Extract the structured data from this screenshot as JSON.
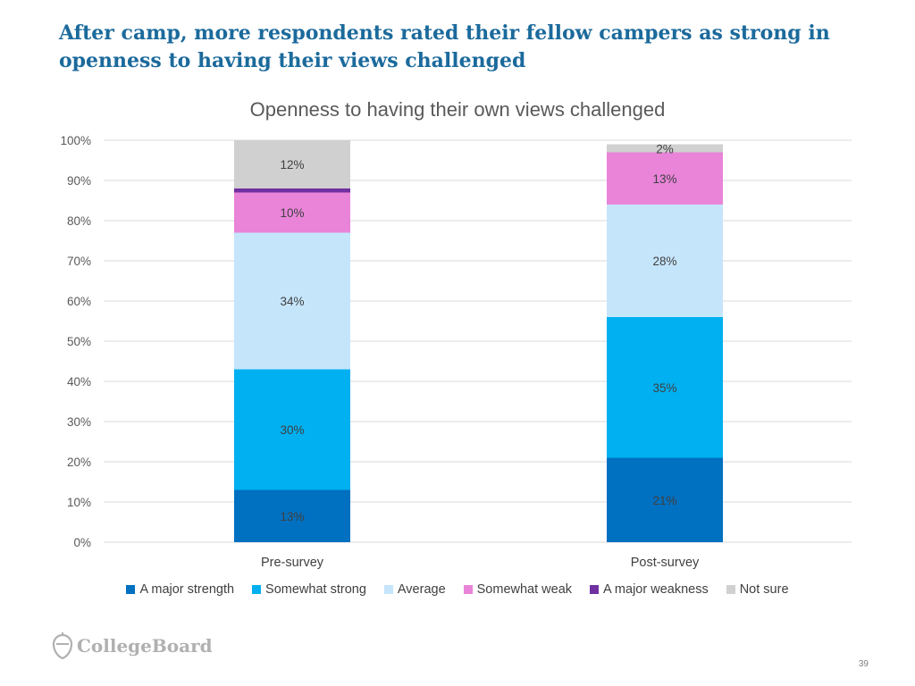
{
  "slide": {
    "headline": "After camp, more respondents rated their fellow campers as strong in openness to having their views challenged",
    "logo_text": "CollegeBoard",
    "page_number": "39"
  },
  "chart_data": {
    "type": "bar",
    "stacked": true,
    "percent_stacked": true,
    "title": "Openness to having their own views challenged",
    "categories": [
      "Pre-survey",
      "Post-survey"
    ],
    "y_ticks": [
      "0%",
      "10%",
      "20%",
      "30%",
      "40%",
      "50%",
      "60%",
      "70%",
      "80%",
      "90%",
      "100%"
    ],
    "ylim": [
      0,
      100
    ],
    "legend_position": "bottom",
    "series": [
      {
        "name": "A major strength",
        "color": "#0070c0",
        "values": [
          13,
          21
        ],
        "labels": [
          "13%",
          "21%"
        ]
      },
      {
        "name": "Somewhat strong",
        "color": "#00b0f0",
        "values": [
          30,
          35
        ],
        "labels": [
          "30%",
          "35%"
        ]
      },
      {
        "name": "Average",
        "color": "#c5e5fb",
        "values": [
          34,
          28
        ],
        "labels": [
          "34%",
          "28%"
        ]
      },
      {
        "name": "Somewhat weak",
        "color": "#e984d9",
        "values": [
          10,
          13
        ],
        "labels": [
          "10%",
          "13%"
        ]
      },
      {
        "name": "A major weakness",
        "color": "#7030a0",
        "values": [
          1,
          0
        ],
        "labels": [
          "",
          ""
        ]
      },
      {
        "name": "Not sure",
        "color": "#d0d0d0",
        "values": [
          12,
          2
        ],
        "labels": [
          "12%",
          "2%"
        ]
      }
    ]
  }
}
